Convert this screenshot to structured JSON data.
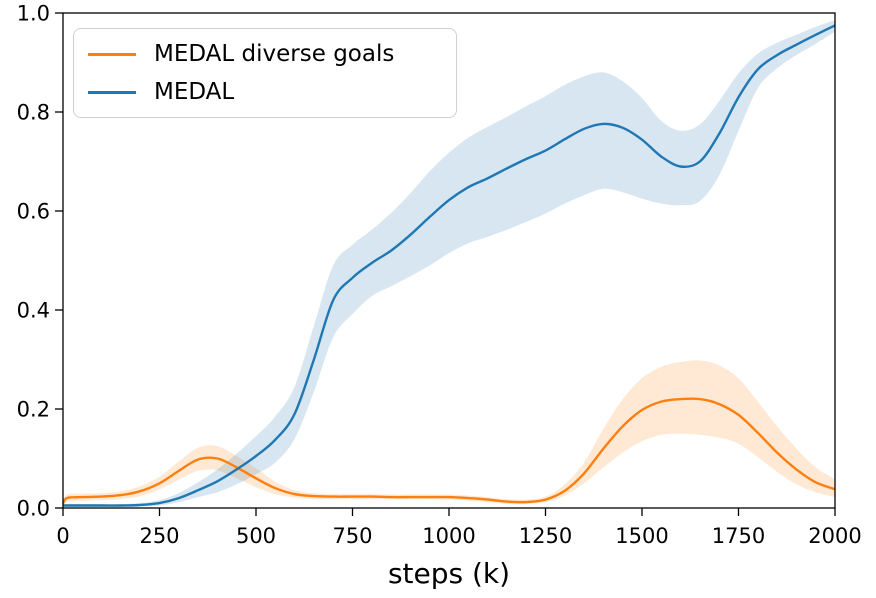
{
  "figure": {
    "background": "#ffffff"
  },
  "chart_data": {
    "type": "line",
    "title": "",
    "xlabel": "steps (k)",
    "ylabel": "",
    "xlim": [
      0,
      2000
    ],
    "ylim": [
      0.0,
      1.0
    ],
    "grid": false,
    "legend_position": "upper left",
    "xticks": [
      "0",
      "250",
      "500",
      "750",
      "1000",
      "1250",
      "1500",
      "1750",
      "2000"
    ],
    "yticks": [
      "0.0",
      "0.2",
      "0.4",
      "0.6",
      "0.8",
      "1.0"
    ],
    "band_opacity": 0.18,
    "axis_color": "#000000",
    "series": [
      {
        "name": "MEDAL diverse goals",
        "color": "#ff7f0e",
        "x": [
          0,
          10,
          50,
          100,
          150,
          200,
          250,
          300,
          350,
          400,
          450,
          500,
          550,
          600,
          650,
          700,
          750,
          800,
          850,
          900,
          950,
          1000,
          1050,
          1100,
          1150,
          1200,
          1250,
          1300,
          1350,
          1400,
          1450,
          1500,
          1550,
          1600,
          1650,
          1700,
          1750,
          1800,
          1850,
          1900,
          1950,
          2000
        ],
        "mean": [
          0.008,
          0.02,
          0.022,
          0.023,
          0.026,
          0.034,
          0.05,
          0.075,
          0.098,
          0.1,
          0.082,
          0.06,
          0.04,
          0.028,
          0.024,
          0.023,
          0.023,
          0.023,
          0.022,
          0.022,
          0.022,
          0.022,
          0.02,
          0.017,
          0.013,
          0.012,
          0.017,
          0.035,
          0.07,
          0.12,
          0.165,
          0.198,
          0.215,
          0.22,
          0.22,
          0.21,
          0.188,
          0.152,
          0.112,
          0.078,
          0.052,
          0.038
        ],
        "lo": [
          0.005,
          0.013,
          0.015,
          0.016,
          0.018,
          0.024,
          0.038,
          0.057,
          0.075,
          0.076,
          0.06,
          0.042,
          0.028,
          0.021,
          0.018,
          0.018,
          0.018,
          0.018,
          0.018,
          0.018,
          0.018,
          0.017,
          0.015,
          0.012,
          0.008,
          0.008,
          0.012,
          0.025,
          0.05,
          0.082,
          0.112,
          0.135,
          0.148,
          0.15,
          0.148,
          0.142,
          0.13,
          0.103,
          0.073,
          0.048,
          0.032,
          0.022
        ],
        "hi": [
          0.012,
          0.027,
          0.029,
          0.03,
          0.034,
          0.044,
          0.063,
          0.094,
          0.122,
          0.125,
          0.105,
          0.08,
          0.053,
          0.036,
          0.03,
          0.028,
          0.028,
          0.028,
          0.027,
          0.027,
          0.027,
          0.027,
          0.025,
          0.022,
          0.018,
          0.017,
          0.023,
          0.048,
          0.092,
          0.16,
          0.22,
          0.262,
          0.285,
          0.295,
          0.298,
          0.288,
          0.262,
          0.215,
          0.165,
          0.12,
          0.082,
          0.058
        ]
      },
      {
        "name": "MEDAL",
        "color": "#1f77b4",
        "x": [
          0,
          50,
          100,
          150,
          200,
          250,
          300,
          350,
          400,
          450,
          500,
          550,
          600,
          650,
          700,
          750,
          800,
          850,
          900,
          950,
          1000,
          1050,
          1100,
          1150,
          1200,
          1250,
          1300,
          1350,
          1400,
          1450,
          1500,
          1550,
          1600,
          1650,
          1700,
          1750,
          1800,
          1850,
          1900,
          1950,
          2000
        ],
        "mean": [
          0.005,
          0.005,
          0.005,
          0.005,
          0.006,
          0.01,
          0.02,
          0.036,
          0.054,
          0.078,
          0.105,
          0.138,
          0.19,
          0.3,
          0.42,
          0.465,
          0.495,
          0.52,
          0.552,
          0.588,
          0.622,
          0.648,
          0.666,
          0.686,
          0.705,
          0.722,
          0.745,
          0.766,
          0.776,
          0.768,
          0.744,
          0.71,
          0.69,
          0.7,
          0.756,
          0.83,
          0.886,
          0.915,
          0.936,
          0.956,
          0.975
        ],
        "lo": [
          0.002,
          0.002,
          0.002,
          0.002,
          0.003,
          0.005,
          0.012,
          0.022,
          0.032,
          0.048,
          0.068,
          0.092,
          0.14,
          0.235,
          0.345,
          0.392,
          0.428,
          0.448,
          0.468,
          0.49,
          0.515,
          0.535,
          0.548,
          0.562,
          0.578,
          0.595,
          0.615,
          0.632,
          0.645,
          0.638,
          0.625,
          0.615,
          0.612,
          0.62,
          0.672,
          0.762,
          0.848,
          0.888,
          0.915,
          0.938,
          0.962
        ],
        "hi": [
          0.008,
          0.008,
          0.008,
          0.008,
          0.01,
          0.016,
          0.03,
          0.052,
          0.078,
          0.11,
          0.145,
          0.185,
          0.245,
          0.368,
          0.49,
          0.532,
          0.562,
          0.596,
          0.636,
          0.68,
          0.718,
          0.748,
          0.77,
          0.79,
          0.812,
          0.832,
          0.855,
          0.872,
          0.88,
          0.862,
          0.828,
          0.782,
          0.762,
          0.775,
          0.822,
          0.878,
          0.918,
          0.94,
          0.956,
          0.972,
          0.986
        ]
      }
    ]
  }
}
